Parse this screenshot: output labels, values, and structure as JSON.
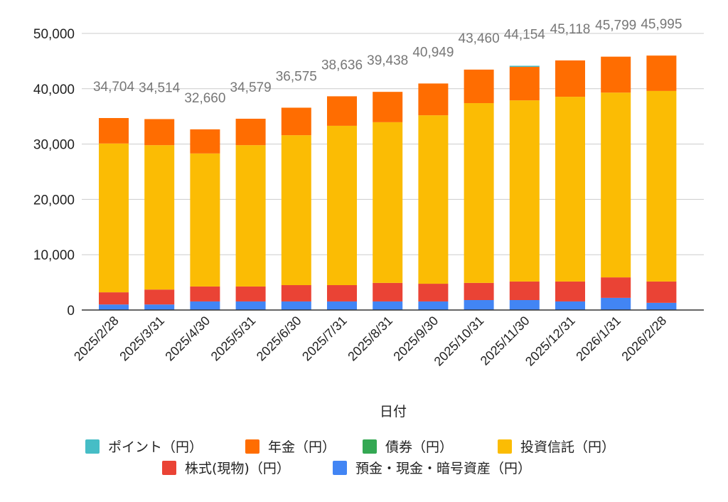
{
  "chart_data": {
    "type": "bar",
    "stacked": true,
    "title": "",
    "xlabel": "日付",
    "ylabel": "",
    "ylim": [
      0,
      50000
    ],
    "yticks": [
      "0",
      "10,000",
      "20,000",
      "30,000",
      "40,000",
      "50,000"
    ],
    "grid": true,
    "legend_position": "bottom",
    "categories": [
      "2025/2/28",
      "2025/3/31",
      "2025/4/30",
      "2025/5/31",
      "2025/6/30",
      "2025/7/31",
      "2025/8/31",
      "2025/9/30",
      "2025/10/31",
      "2025/11/30",
      "2025/12/31",
      "2026/1/31",
      "2026/2/28"
    ],
    "totals": [
      "34,704",
      "34,514",
      "32,660",
      "34,579",
      "36,575",
      "38,636",
      "39,438",
      "40,949",
      "43,460",
      "44,154",
      "45,118",
      "45,799",
      "45,995"
    ],
    "stack_order": [
      "預金・現金・暗号資産（円）",
      "株式(現物)（円）",
      "投資信託（円）",
      "債券（円）",
      "年金（円）",
      "ポイント（円）"
    ],
    "legend_order": [
      "ポイント（円）",
      "年金（円）",
      "債券（円）",
      "投資信託（円）",
      "株式(現物)（円）",
      "預金・現金・暗号資産（円）"
    ],
    "series": [
      {
        "name": "預金・現金・暗号資産（円）",
        "color": "#4285f4",
        "values": [
          1000,
          1000,
          1550,
          1550,
          1550,
          1550,
          1550,
          1550,
          1800,
          1800,
          1550,
          2200,
          1300
        ]
      },
      {
        "name": "株式(現物)（円）",
        "color": "#ea4335",
        "values": [
          2200,
          2700,
          2700,
          2700,
          2950,
          2950,
          3350,
          3200,
          3100,
          3350,
          3600,
          3700,
          3850
        ]
      },
      {
        "name": "投資信託（円）",
        "color": "#fbbc04",
        "values": [
          26900,
          26100,
          24050,
          25550,
          27100,
          28800,
          29050,
          30450,
          32500,
          32750,
          33400,
          33400,
          34450
        ]
      },
      {
        "name": "債券（円）",
        "color": "#34a853",
        "values": [
          0,
          0,
          0,
          0,
          0,
          0,
          0,
          0,
          0,
          0,
          0,
          0,
          0
        ]
      },
      {
        "name": "年金（円）",
        "color": "#ff6d01",
        "values": [
          4604,
          4714,
          4360,
          4779,
          4975,
          5336,
          5488,
          5749,
          6060,
          6054,
          6568,
          6499,
          6395
        ]
      },
      {
        "name": "ポイント（円）",
        "color": "#46bdc6",
        "values": [
          0,
          0,
          0,
          0,
          0,
          0,
          0,
          0,
          0,
          200,
          0,
          0,
          0
        ]
      }
    ]
  }
}
